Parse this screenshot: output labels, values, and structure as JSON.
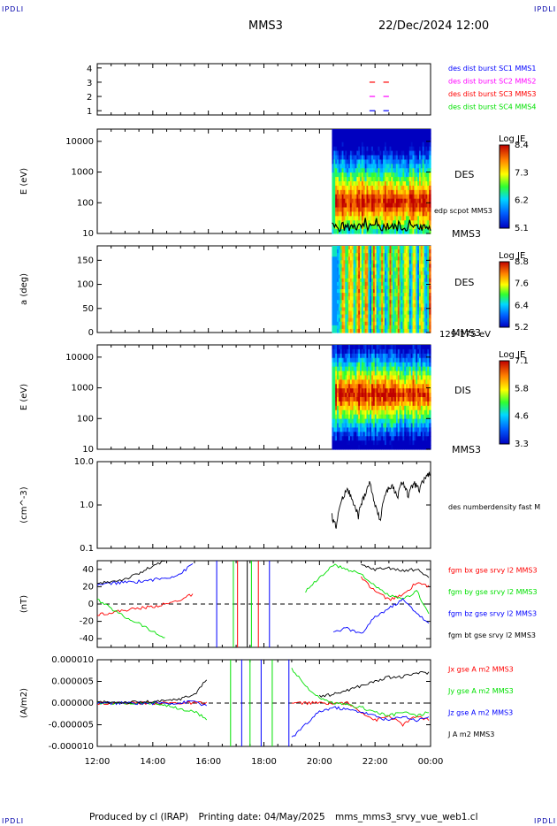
{
  "corners": {
    "top_left": "IPDLI",
    "top_right": "IPDLI",
    "bottom_left": "IPDLI",
    "bottom_right": "IPDLI"
  },
  "header": {
    "spacecraft": "MMS3",
    "date": "22/Dec/2024 12:00"
  },
  "footer": {
    "produced_by": "Produced by cl (IRAP)",
    "printing_date": "Printing date: 04/May/2025",
    "file": "mms_mms3_srvy_vue_web1.cl"
  },
  "colors": {
    "blue": "#0000ff",
    "red": "#ff0000",
    "green": "#00e000",
    "magenta": "#ff00ff",
    "black": "#000000"
  },
  "chart_data": [
    {
      "type": "scatter",
      "id": "burst",
      "yticks": [
        "1",
        "2",
        "3",
        "4"
      ],
      "ylim": [
        0.7,
        4.3
      ],
      "legend": [
        {
          "label": "des dist burst SC1 MMS1",
          "color": "#0000ff"
        },
        {
          "label": "des dist burst SC2 MMS2",
          "color": "#ff00ff"
        },
        {
          "label": "des dist burst SC3 MMS3",
          "color": "#ff0000"
        },
        {
          "label": "des dist burst SC4 MMS4",
          "color": "#00e000"
        }
      ],
      "segments": [
        {
          "sc": 1,
          "y": 1,
          "x0": 21.8,
          "x1": 22.0
        },
        {
          "sc": 1,
          "y": 1,
          "x0": 22.3,
          "x1": 22.5
        },
        {
          "sc": 2,
          "y": 2,
          "x0": 21.8,
          "x1": 22.0
        },
        {
          "sc": 2,
          "y": 2,
          "x0": 22.3,
          "x1": 22.5
        },
        {
          "sc": 3,
          "y": 3,
          "x0": 21.8,
          "x1": 22.0
        },
        {
          "sc": 3,
          "y": 3,
          "x0": 22.3,
          "x1": 22.5
        }
      ]
    },
    {
      "type": "heatmap",
      "id": "des_energy",
      "ylabel": "E (eV)",
      "yscale": "log",
      "ylim": [
        10,
        25000
      ],
      "yticks": [
        "10",
        "100",
        "1000",
        "10000"
      ],
      "start": 20.45,
      "label": "DES",
      "label2": "MMS3",
      "overlay_label": "edp scpot MMS3",
      "colorbar": {
        "title": "Log JE",
        "ticks": [
          "5.1",
          "6.2",
          "7.3",
          "8.4"
        ]
      }
    },
    {
      "type": "heatmap",
      "id": "des_pitch",
      "ylabel": "a (deg)",
      "ylim": [
        0,
        180
      ],
      "yticks": [
        "0",
        "50",
        "100",
        "150"
      ],
      "start": 20.45,
      "label": "DES",
      "label2": "MMS3",
      "sublabel": "129-175 eV",
      "colorbar": {
        "title": "Log JE",
        "ticks": [
          "5.2",
          "6.4",
          "7.6",
          "8.8"
        ]
      }
    },
    {
      "type": "heatmap",
      "id": "dis_energy",
      "ylabel": "E (eV)",
      "yscale": "log",
      "ylim": [
        10,
        25000
      ],
      "yticks": [
        "10",
        "100",
        "1000",
        "10000"
      ],
      "start": 20.45,
      "label": "DIS",
      "label2": "MMS3",
      "colorbar": {
        "title": "Log JE",
        "ticks": [
          "3.3",
          "4.6",
          "5.8",
          "7.1"
        ]
      }
    },
    {
      "type": "line",
      "id": "density",
      "ylabel": "(cm^-3)",
      "yscale": "log",
      "ylim": [
        0.1,
        10.0
      ],
      "yticks": [
        "0.1",
        "1.0",
        "10.0"
      ],
      "legend": [
        {
          "label": "des numberdensity fast M",
          "color": "#000000"
        }
      ],
      "x": [
        20.45,
        20.6,
        20.8,
        21.0,
        21.2,
        21.4,
        21.6,
        21.8,
        22.0,
        22.2,
        22.4,
        22.6,
        22.8,
        23.0,
        23.2,
        23.4,
        23.6,
        23.8,
        24.0
      ],
      "y": [
        0.55,
        0.3,
        1.2,
        2.5,
        1.1,
        0.55,
        1.5,
        3.2,
        0.9,
        0.45,
        2.0,
        2.8,
        1.4,
        3.5,
        1.5,
        3.2,
        2.1,
        4.2,
        5.5
      ]
    },
    {
      "type": "line",
      "id": "bfield",
      "ylabel": "(nT)",
      "ylim": [
        -50,
        50
      ],
      "yticks": [
        "-40",
        "-20",
        "0",
        "20",
        "40"
      ],
      "legend": [
        {
          "label": "fgm bx gse srvy l2 MMS3",
          "color": "#ff0000"
        },
        {
          "label": "fgm by gse srvy l2 MMS3",
          "color": "#00e000"
        },
        {
          "label": "fgm bz gse srvy l2 MMS3",
          "color": "#0000ff"
        },
        {
          "label": "fgm bt gse srvy l2 MMS3",
          "color": "#000000"
        }
      ],
      "x": [
        12.0,
        12.5,
        13.0,
        13.5,
        14.0,
        14.5,
        15.0,
        15.5,
        16.0,
        16.5,
        17.0,
        17.5,
        18.0,
        18.5,
        19.0,
        19.5,
        20.0,
        20.5,
        21.0,
        21.5,
        22.0,
        22.5,
        23.0,
        23.5,
        24.0
      ],
      "series": [
        {
          "name": "bx",
          "color": "#ff0000",
          "values": [
            -12,
            -10,
            -7,
            -5,
            -3,
            0,
            5,
            12,
            null,
            null,
            null,
            null,
            null,
            null,
            null,
            null,
            null,
            null,
            null,
            30,
            15,
            5,
            10,
            25,
            20
          ]
        },
        {
          "name": "by",
          "color": "#00e000",
          "values": [
            5,
            -5,
            -15,
            -22,
            -32,
            -40,
            null,
            null,
            null,
            null,
            null,
            null,
            null,
            null,
            null,
            15,
            30,
            45,
            40,
            35,
            20,
            10,
            5,
            15,
            -15
          ]
        },
        {
          "name": "bz",
          "color": "#0000ff",
          "values": [
            22,
            24,
            25,
            26,
            28,
            30,
            35,
            48,
            null,
            null,
            null,
            null,
            null,
            null,
            null,
            null,
            null,
            -32,
            -28,
            -35,
            -15,
            -5,
            5,
            -10,
            -25
          ]
        },
        {
          "name": "bt",
          "color": "#000000",
          "values": [
            23,
            26,
            29,
            35,
            44,
            50,
            null,
            null,
            null,
            null,
            null,
            null,
            null,
            null,
            null,
            null,
            null,
            null,
            null,
            45,
            40,
            42,
            38,
            40,
            30
          ]
        }
      ]
    },
    {
      "type": "line",
      "id": "current",
      "ylabel": "(A/m2)",
      "ylim": [
        -1e-05,
        1e-05
      ],
      "yticks": [
        "-0.000010",
        "-0.000005",
        "0.000000",
        "0.000005",
        "0.000010"
      ],
      "legend": [
        {
          "label": "Jx gse A m2 MMS3",
          "color": "#ff0000"
        },
        {
          "label": "Jy gse A m2 MMS3",
          "color": "#00e000"
        },
        {
          "label": "Jz gse A m2 MMS3",
          "color": "#0000ff"
        },
        {
          "label": "J A m2 MMS3",
          "color": "#000000"
        }
      ],
      "x": [
        12.0,
        12.5,
        13.0,
        13.5,
        14.0,
        14.5,
        15.0,
        15.5,
        16.0,
        16.5,
        17.0,
        17.5,
        18.0,
        18.5,
        19.0,
        19.5,
        20.0,
        20.5,
        21.0,
        21.5,
        22.0,
        22.5,
        23.0,
        23.5,
        24.0
      ],
      "series": [
        {
          "name": "Jx",
          "color": "#ff0000",
          "values": [
            0,
            0,
            0,
            0,
            0,
            0,
            0,
            0,
            0,
            null,
            null,
            null,
            null,
            null,
            0,
            0,
            0,
            0,
            0,
            -2e-06,
            -4e-06,
            -3e-06,
            -5e-06,
            -3e-06,
            -4e-06
          ]
        },
        {
          "name": "Jy",
          "color": "#00e000",
          "values": [
            0,
            0,
            0,
            0,
            0,
            -5e-07,
            -1.5e-06,
            -2e-06,
            -4e-06,
            null,
            null,
            null,
            null,
            null,
            8e-06,
            4e-06,
            1e-06,
            0,
            -5e-07,
            -1e-06,
            -2e-06,
            -3e-06,
            -2e-06,
            -3e-06,
            -2e-06
          ]
        },
        {
          "name": "Jz",
          "color": "#0000ff",
          "values": [
            0,
            0,
            0,
            0,
            0,
            0,
            0,
            5e-07,
            -1e-06,
            null,
            null,
            null,
            null,
            null,
            -8e-06,
            -5e-06,
            -2e-06,
            -1e-06,
            -1.5e-06,
            -2e-06,
            -3e-06,
            -4e-06,
            -3e-06,
            -4e-06,
            -3e-06
          ]
        },
        {
          "name": "J",
          "color": "#000000",
          "values": [
            2e-07,
            2e-07,
            2e-07,
            2e-07,
            3e-07,
            5e-07,
            1e-06,
            2e-06,
            6e-06,
            null,
            null,
            null,
            null,
            null,
            null,
            null,
            1.5e-06,
            2e-06,
            3e-06,
            4e-06,
            5e-06,
            6e-06,
            6e-06,
            7e-06,
            7e-06
          ]
        }
      ]
    }
  ],
  "time_axis": {
    "range": [
      12,
      24
    ],
    "ticks": [
      "12:00",
      "14:00",
      "16:00",
      "18:00",
      "20:00",
      "22:00",
      "00:00"
    ]
  }
}
